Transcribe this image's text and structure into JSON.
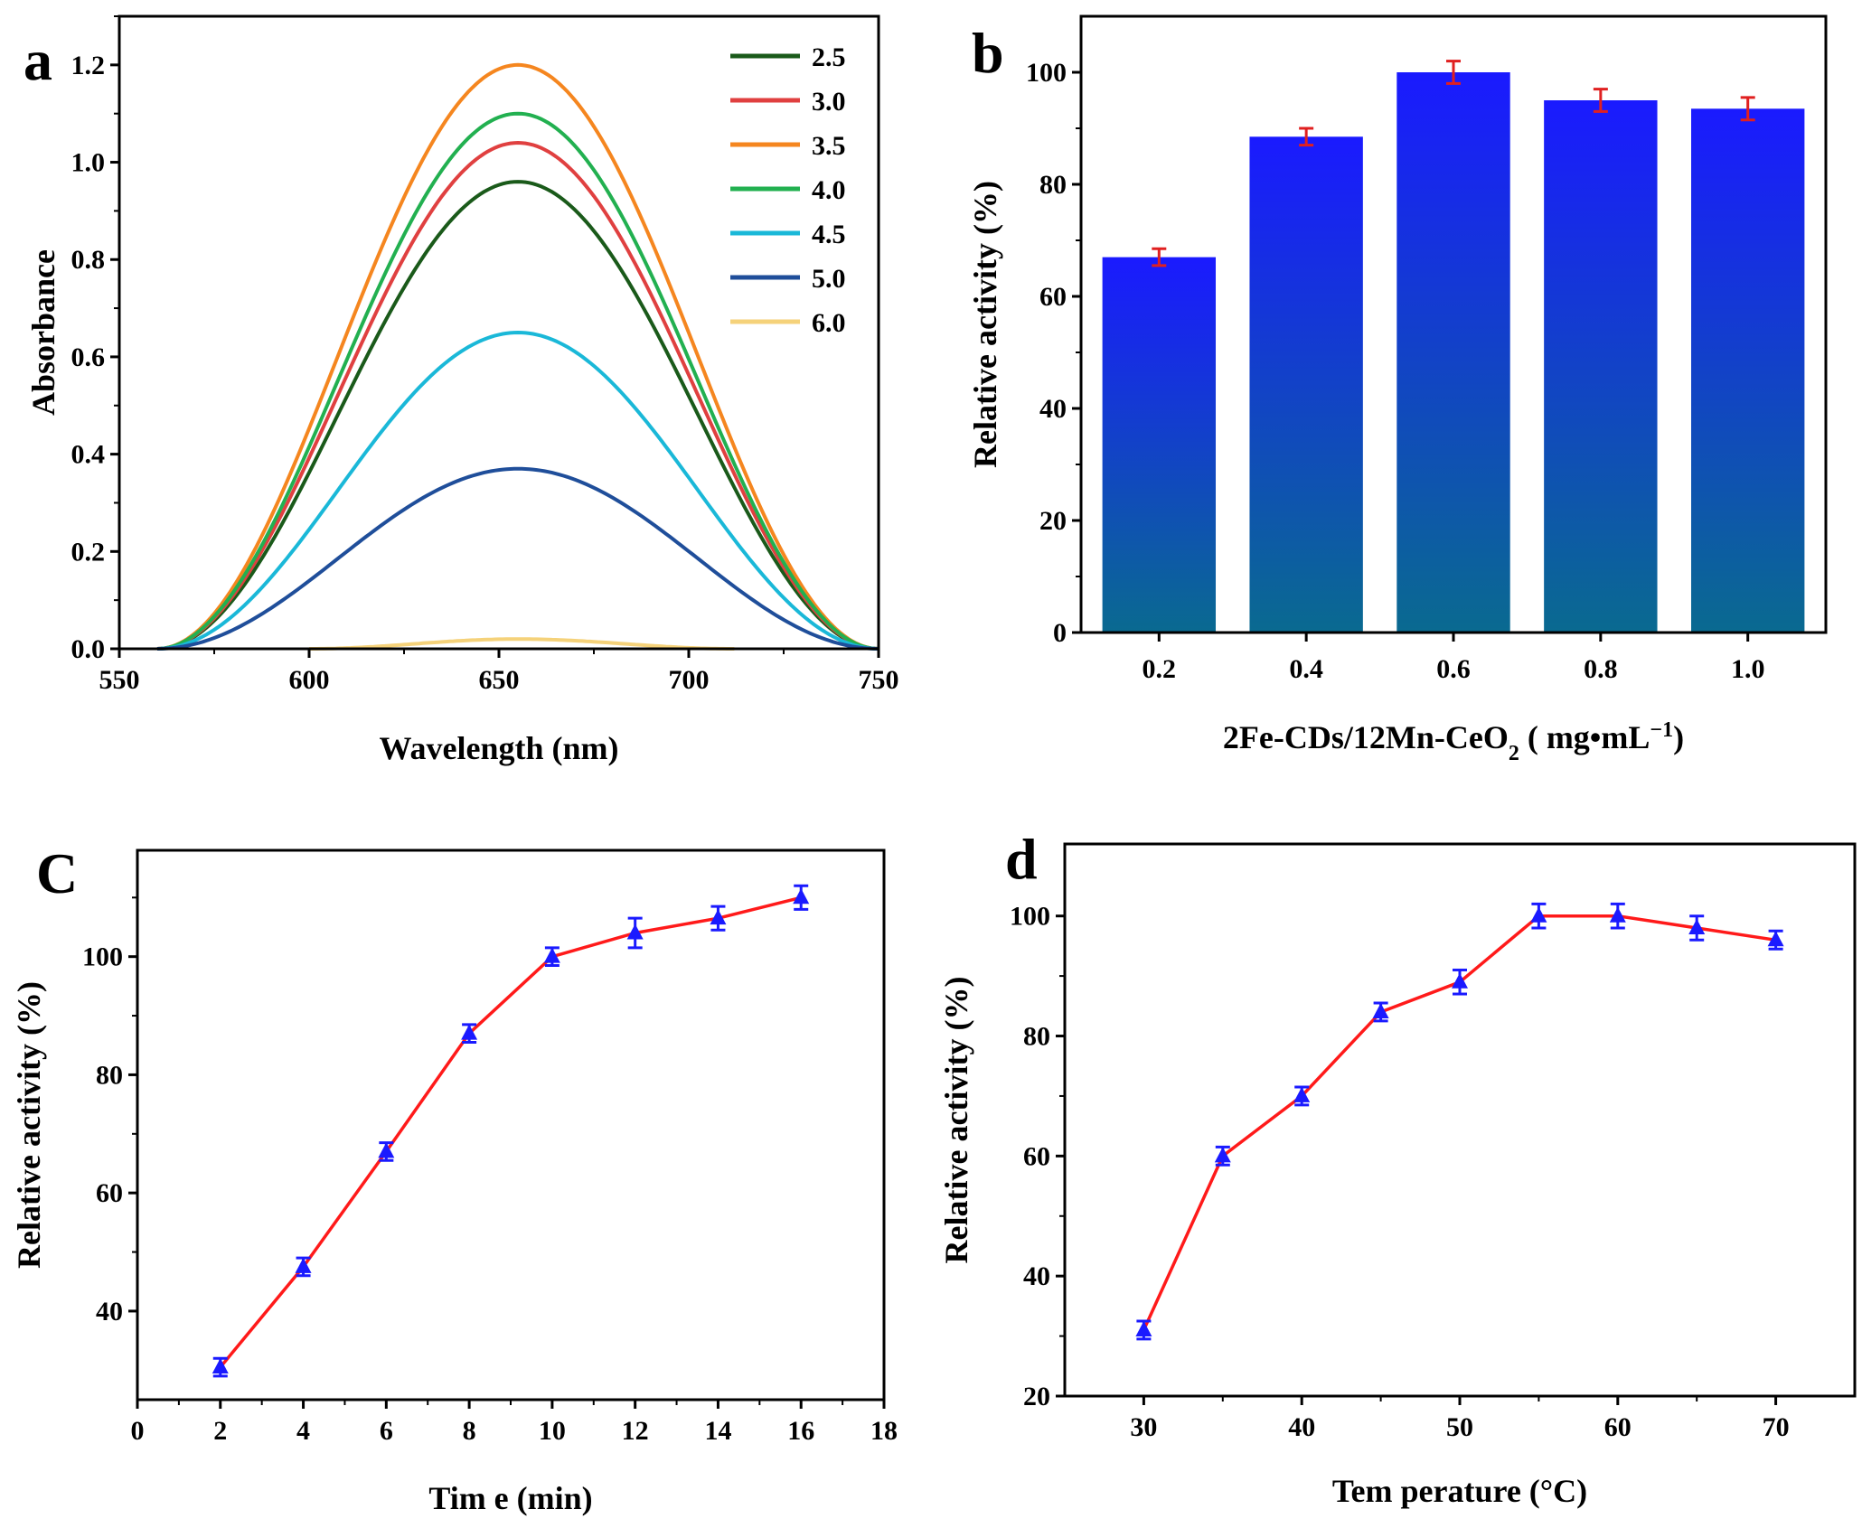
{
  "chart_data": [
    {
      "id": "a",
      "type": "line",
      "panel_label": "a",
      "xlabel": "Wavelength (nm)",
      "ylabel": "Absorbance",
      "xlim": [
        550,
        750
      ],
      "ylim": [
        0.0,
        1.3
      ],
      "xticks": [
        "550",
        "600",
        "650",
        "700",
        "750"
      ],
      "yticks": [
        "0.0",
        "0.2",
        "0.4",
        "0.6",
        "0.8",
        "1.0",
        "1.2"
      ],
      "peak_wavelength": 655,
      "start_wavelength": 560,
      "end_wavelength": 750,
      "legend_position": "top-right",
      "series": [
        {
          "name": "2.5",
          "peak": 0.96,
          "color": "#1a5a1a"
        },
        {
          "name": "3.0",
          "peak": 1.04,
          "color": "#e04040"
        },
        {
          "name": "3.5",
          "peak": 1.2,
          "color": "#f5861f"
        },
        {
          "name": "4.0",
          "peak": 1.1,
          "color": "#22b050"
        },
        {
          "name": "4.5",
          "peak": 0.65,
          "color": "#1ab8d8"
        },
        {
          "name": "5.0",
          "peak": 0.37,
          "color": "#1f4e9a"
        },
        {
          "name": "6.0",
          "peak": 0.02,
          "color": "#f5d27a",
          "start": 600,
          "end": 712
        }
      ]
    },
    {
      "id": "b",
      "type": "bar",
      "panel_label": "b",
      "xlabel_main": "2Fe-CDs/12Mn-CeO",
      "xlabel_sub": "2",
      "xlabel_rest": " ( mg•mL",
      "xlabel_sup": "−1",
      "xlabel_end": ")",
      "ylabel": "Relative activity (%)",
      "categories": [
        "0.2",
        "0.4",
        "0.6",
        "0.8",
        "1.0"
      ],
      "values": [
        67.0,
        88.5,
        100.0,
        95.0,
        93.5
      ],
      "errors": [
        1.5,
        1.5,
        2.0,
        2.0,
        2.0
      ],
      "ylim": [
        0,
        110
      ],
      "yticks": [
        "0",
        "20",
        "40",
        "60",
        "80",
        "100"
      ],
      "bar_color_top": "#1a1aff",
      "bar_color_bottom": "#0a6a90",
      "error_color": "#e02020"
    },
    {
      "id": "c",
      "type": "line",
      "panel_label": "C",
      "xlabel": "Tim e (min)",
      "ylabel": "Relative activity (%)",
      "x": [
        2,
        4,
        6,
        8,
        10,
        12,
        14,
        16
      ],
      "y": [
        30.5,
        47.5,
        67.0,
        87.0,
        100.0,
        104.0,
        106.5,
        110.0
      ],
      "errors": [
        1.5,
        1.5,
        1.5,
        1.5,
        1.5,
        2.5,
        2.0,
        2.0
      ],
      "xlim": [
        0,
        18
      ],
      "ylim": [
        25,
        118
      ],
      "xticks": [
        "0",
        "2",
        "4",
        "6",
        "8",
        "10",
        "12",
        "14",
        "16",
        "18"
      ],
      "yticks": [
        "40",
        "60",
        "80",
        "100"
      ],
      "line_color": "#ff1a1a",
      "marker_color": "#1a1aff"
    },
    {
      "id": "d",
      "type": "line",
      "panel_label": "d",
      "xlabel": "Tem perature (°C)",
      "ylabel": "Relative activity (%)",
      "x": [
        30,
        35,
        40,
        45,
        50,
        55,
        60,
        65,
        70
      ],
      "y": [
        31.0,
        60.0,
        70.0,
        84.0,
        89.0,
        100.0,
        100.0,
        98.0,
        96.0
      ],
      "errors": [
        1.5,
        1.5,
        1.5,
        1.5,
        2.0,
        2.0,
        2.0,
        2.0,
        1.5
      ],
      "xlim": [
        25,
        75
      ],
      "ylim": [
        20,
        112
      ],
      "xticks": [
        "30",
        "40",
        "50",
        "60",
        "70"
      ],
      "yticks": [
        "20",
        "40",
        "60",
        "80",
        "100"
      ],
      "line_color": "#ff1a1a",
      "marker_color": "#1a1aff"
    }
  ]
}
